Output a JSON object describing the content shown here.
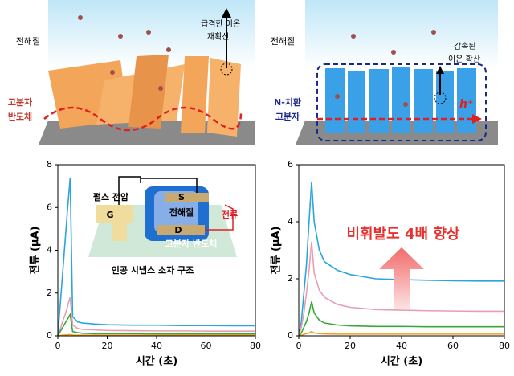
{
  "illustrations": {
    "left": {
      "electrolyte": "전해질",
      "ion_note": [
        "급격한 이온",
        "재확산"
      ],
      "material": [
        "고분자",
        "반도체"
      ]
    },
    "right": {
      "electrolyte": "전해질",
      "ion_note": [
        "감속된",
        "이온 확산"
      ],
      "material": [
        "N-치환",
        "고분자"
      ],
      "carrier": "h⁺"
    }
  },
  "chart_data": [
    {
      "type": "line",
      "xlabel": "시간 (초)",
      "ylabel": "전류 (μA)",
      "xlim": [
        0,
        80
      ],
      "ylim": [
        0,
        8
      ],
      "xticks": [
        0,
        20,
        40,
        60,
        80
      ],
      "yticks": [
        0,
        2,
        4,
        6,
        8
      ],
      "x": [
        0,
        1,
        2,
        3,
        4,
        5,
        6,
        8,
        10,
        15,
        20,
        30,
        40,
        50,
        60,
        70,
        80
      ],
      "series": [
        {
          "color": "#2aa6dc",
          "values": [
            0,
            1.5,
            3,
            4.5,
            6,
            7.4,
            0.9,
            0.65,
            0.6,
            0.55,
            0.52,
            0.5,
            0.5,
            0.48,
            0.48,
            0.47,
            0.47
          ]
        },
        {
          "color": "#e99db2",
          "values": [
            0,
            0.3,
            0.7,
            1.0,
            1.4,
            1.8,
            0.5,
            0.35,
            0.3,
            0.28,
            0.25,
            0.24,
            0.23,
            0.23,
            0.22,
            0.22,
            0.22
          ]
        },
        {
          "color": "#38a838",
          "values": [
            0,
            0.2,
            0.4,
            0.6,
            0.8,
            1.0,
            0.2,
            0.15,
            0.12,
            0.1,
            0.1,
            0.1,
            0.09,
            0.09,
            0.09,
            0.09,
            0.09
          ]
        },
        {
          "color": "#f0a020",
          "values": [
            0,
            0.02,
            0.03,
            0.04,
            0.05,
            0.06,
            0.03,
            0.03,
            0.03,
            0.03,
            0.03,
            0.03,
            0.03,
            0.03,
            0.03,
            0.03,
            0.03
          ]
        }
      ],
      "inset": {
        "pulse": "펄스 전압",
        "gate": "G",
        "source": "S",
        "drain": "D",
        "electrolyte": "전해질",
        "current": "전류",
        "semiconductor": "고분자 반도체",
        "caption": "인공 시냅스 소자 구조"
      }
    },
    {
      "type": "line",
      "xlabel": "시간 (초)",
      "ylabel": "전류 (μA)",
      "xlim": [
        0,
        80
      ],
      "ylim": [
        0,
        6
      ],
      "xticks": [
        0,
        20,
        40,
        60,
        80
      ],
      "yticks": [
        0,
        2,
        4,
        6
      ],
      "x": [
        0,
        1,
        2,
        3,
        4,
        5,
        6,
        8,
        10,
        15,
        20,
        30,
        40,
        50,
        60,
        70,
        80
      ],
      "series": [
        {
          "color": "#2aa6dc",
          "values": [
            0,
            0.5,
            1.5,
            2.5,
            4,
            5.4,
            4,
            3.0,
            2.6,
            2.3,
            2.15,
            2.0,
            1.97,
            1.95,
            1.93,
            1.92,
            1.92
          ]
        },
        {
          "color": "#e99db2",
          "values": [
            0,
            0.3,
            0.8,
            1.5,
            2.3,
            3.3,
            2.2,
            1.6,
            1.35,
            1.1,
            1.0,
            0.92,
            0.9,
            0.88,
            0.87,
            0.86,
            0.86
          ]
        },
        {
          "color": "#38a838",
          "values": [
            0,
            0.1,
            0.3,
            0.5,
            0.8,
            1.2,
            0.8,
            0.55,
            0.45,
            0.38,
            0.35,
            0.33,
            0.33,
            0.32,
            0.32,
            0.32,
            0.32
          ]
        },
        {
          "color": "#f0a020",
          "values": [
            0,
            0.02,
            0.05,
            0.08,
            0.1,
            0.15,
            0.1,
            0.08,
            0.07,
            0.06,
            0.06,
            0.06,
            0.06,
            0.06,
            0.06,
            0.06,
            0.06
          ]
        }
      ],
      "annotation": "비휘발도 4배 향상"
    }
  ]
}
